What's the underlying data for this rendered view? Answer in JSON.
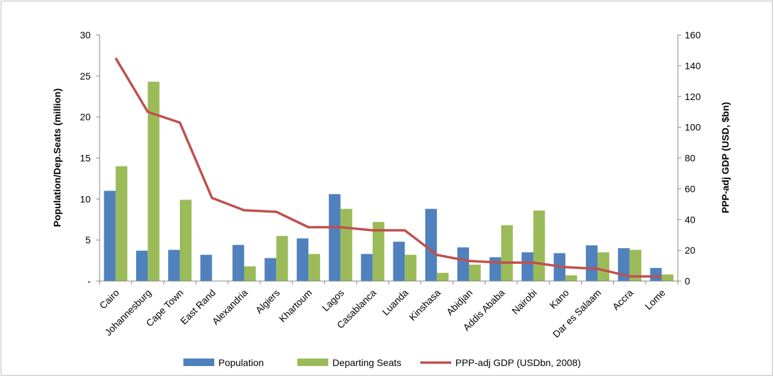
{
  "chart_data": {
    "type": "bar",
    "categories": [
      "Cairo",
      "Johannesburg",
      "Cape Town",
      "East Rand",
      "Alexandria",
      "Algiers",
      "Khartoum",
      "Lagos",
      "Casablanca",
      "Luanda",
      "Kinshasa",
      "Abidjan",
      "Addis Ababa",
      "Nairobi",
      "Kano",
      "Dar es Salaam",
      "Accra",
      "Lome"
    ],
    "series": [
      {
        "name": "Population",
        "axis": "left",
        "kind": "bar",
        "color": "#4f81bd",
        "values": [
          11.0,
          3.7,
          3.8,
          3.2,
          4.4,
          2.8,
          5.2,
          10.6,
          3.3,
          4.8,
          8.8,
          4.1,
          2.9,
          3.5,
          3.4,
          4.35,
          4.0,
          1.6
        ]
      },
      {
        "name": "Departing Seats",
        "axis": "left",
        "kind": "bar",
        "color": "#9bbb59",
        "values": [
          14.0,
          24.3,
          9.9,
          0,
          1.8,
          5.5,
          3.3,
          8.8,
          7.2,
          3.2,
          1.0,
          2.0,
          6.8,
          8.6,
          0.7,
          3.5,
          3.8,
          0.8
        ]
      },
      {
        "name": "PPP-adj GDP (USDbn, 2008)",
        "axis": "right",
        "kind": "line",
        "color": "#c0504d",
        "values": [
          145,
          110,
          103,
          54,
          46,
          45,
          35,
          35,
          33,
          33,
          17,
          13,
          12,
          12,
          9,
          8,
          3,
          3
        ]
      }
    ],
    "ylabel": "Population/Dep.Seats (million)",
    "y2label": "PPP-adj GDP (USD, $bn)",
    "ylim": [
      0,
      30
    ],
    "y2lim": [
      0,
      160
    ],
    "yticks": [
      "-",
      "5",
      "10",
      "15",
      "20",
      "25",
      "30"
    ],
    "y2ticks": [
      "0",
      "20",
      "40",
      "60",
      "80",
      "100",
      "120",
      "140",
      "160"
    ],
    "legend_position": "bottom",
    "grid": false
  }
}
